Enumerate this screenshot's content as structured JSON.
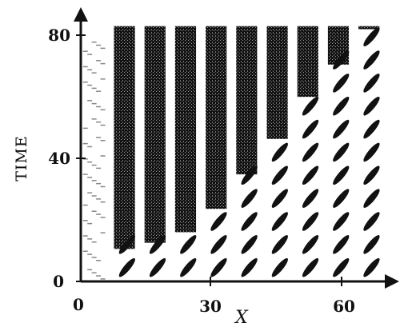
{
  "chart_data": {
    "type": "heatmap",
    "description_kind": "space-time plot",
    "title": "",
    "xlabel": "X",
    "ylabel": "TIME",
    "xlim": [
      0,
      70
    ],
    "ylim": [
      0,
      85
    ],
    "x_ticks": [
      "0",
      "30",
      "60"
    ],
    "x_tick_values": [
      0,
      30,
      60
    ],
    "y_ticks": [
      "0",
      "40",
      "80"
    ],
    "y_tick_values": [
      0,
      40,
      80
    ],
    "grid": false,
    "colors": {
      "ink": "#111111",
      "background": "#ffffff"
    },
    "stripe_centers_x": [
      10,
      17,
      24,
      31,
      38,
      45,
      52,
      59,
      66
    ],
    "transition_front": [
      {
        "x": 8,
        "t": 10
      },
      {
        "x": 22,
        "t": 14
      },
      {
        "x": 30,
        "t": 22
      },
      {
        "x": 40,
        "t": 38
      },
      {
        "x": 46,
        "t": 48
      },
      {
        "x": 52,
        "t": 60
      },
      {
        "x": 60,
        "t": 72
      },
      {
        "x": 66,
        "t": 82
      }
    ]
  }
}
